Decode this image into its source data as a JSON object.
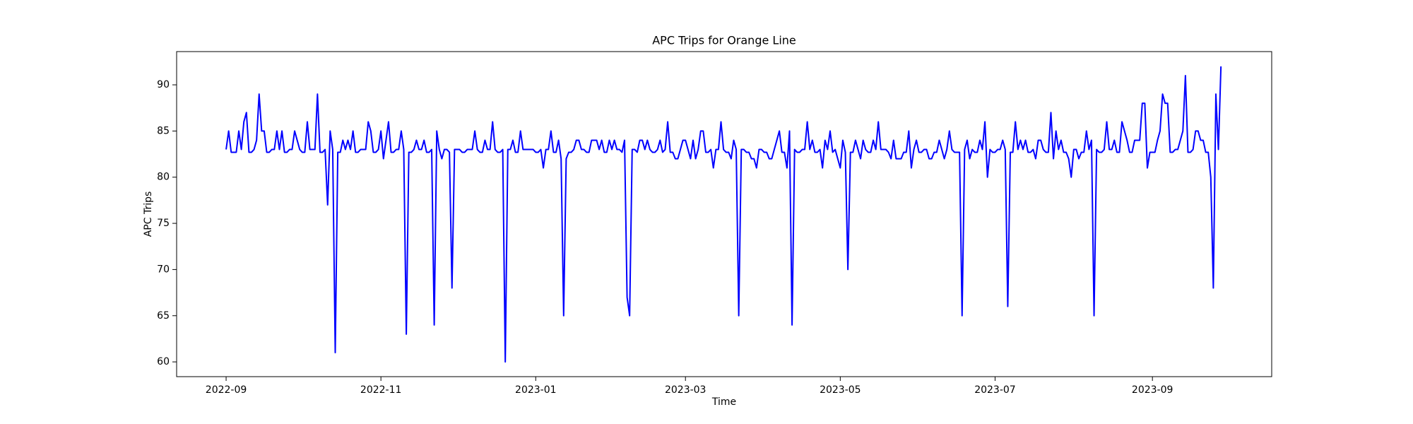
{
  "chart_data": {
    "type": "line",
    "title": "APC Trips for Orange Line",
    "xlabel": "Time",
    "ylabel": "APC Trips",
    "x": [
      0,
      1,
      2,
      3,
      4,
      5,
      6,
      7,
      8,
      9,
      10,
      11,
      12,
      13,
      14,
      15,
      16,
      17,
      18,
      19,
      20,
      21,
      22,
      23,
      24,
      25,
      26,
      27,
      28,
      29,
      30,
      31,
      32,
      33,
      34,
      35,
      36,
      37,
      38,
      39,
      40,
      41,
      42,
      43,
      44,
      45,
      46,
      47,
      48,
      49,
      50,
      51,
      52,
      53,
      54,
      55,
      56,
      57,
      58,
      59,
      60,
      61,
      62,
      63,
      64,
      65,
      66,
      67,
      68,
      69,
      70,
      71,
      72,
      73,
      74,
      75,
      76,
      77,
      78,
      79,
      80,
      81,
      82,
      83,
      84,
      85,
      86,
      87,
      88,
      89,
      90,
      91,
      92,
      93,
      94,
      95,
      96,
      97,
      98,
      99,
      100,
      101,
      102,
      103,
      104,
      105,
      106,
      107,
      108,
      109,
      110,
      111,
      112,
      113,
      114,
      115,
      116,
      117,
      118,
      119,
      120,
      121,
      122,
      123,
      124,
      125,
      126,
      127,
      128,
      129,
      130,
      131,
      132,
      133,
      134,
      135,
      136,
      137,
      138,
      139,
      140,
      141,
      142,
      143,
      144,
      145,
      146,
      147,
      148,
      149,
      150,
      151,
      152,
      153,
      154,
      155,
      156,
      157,
      158,
      159,
      160,
      161,
      162,
      163,
      164,
      165,
      166,
      167,
      168,
      169,
      170,
      171,
      172,
      173,
      174,
      175,
      176,
      177,
      178,
      179,
      180,
      181,
      182,
      183,
      184,
      185,
      186,
      187,
      188,
      189,
      190,
      191,
      192,
      193,
      194,
      195,
      196,
      197,
      198,
      199,
      200,
      201,
      202,
      203,
      204,
      205,
      206,
      207,
      208,
      209,
      210,
      211,
      212,
      213,
      214,
      215,
      216,
      217,
      218,
      219,
      220,
      221,
      222,
      223,
      224,
      225,
      226,
      227,
      228,
      229,
      230,
      231,
      232,
      233,
      234,
      235,
      236,
      237,
      238,
      239,
      240,
      241,
      242,
      243,
      244,
      245,
      246,
      247,
      248,
      249,
      250,
      251,
      252,
      253,
      254,
      255,
      256,
      257,
      258,
      259,
      260,
      261,
      262,
      263,
      264,
      265,
      266,
      267,
      268,
      269,
      270,
      271,
      272,
      273,
      274,
      275,
      276,
      277,
      278,
      279,
      280,
      281,
      282,
      283,
      284,
      285,
      286,
      287,
      288,
      289,
      290,
      291,
      292,
      293,
      294,
      295,
      296,
      297,
      298,
      299,
      300,
      301,
      302,
      303,
      304,
      305,
      306,
      307,
      308,
      309,
      310,
      311,
      312,
      313,
      314,
      315,
      316,
      317,
      318,
      319,
      320,
      321,
      322,
      323,
      324,
      325,
      326,
      327,
      328,
      329,
      330,
      331,
      332,
      333,
      334,
      335,
      336,
      337,
      338,
      339,
      340,
      341,
      342,
      343,
      344,
      345,
      346,
      347,
      348,
      349,
      350,
      351,
      352,
      353,
      354,
      355,
      356,
      357,
      358,
      359,
      360,
      361,
      362,
      363,
      364,
      365,
      366,
      367,
      368,
      369,
      370,
      371,
      372,
      373,
      374,
      375,
      376,
      377,
      378,
      379,
      380,
      381,
      382,
      383,
      384,
      385,
      386,
      387,
      388,
      389,
      390,
      391,
      392
    ],
    "series": [
      {
        "name": "APC Trips",
        "color": "#0000ff",
        "values": [
          83,
          85,
          82.7,
          82.7,
          82.7,
          85,
          83,
          86,
          87,
          82.7,
          82.7,
          83,
          84,
          89,
          85,
          85,
          82.7,
          82.7,
          83,
          83,
          85,
          83,
          85,
          82.7,
          82.7,
          83,
          83,
          85,
          84,
          83,
          82.7,
          82.7,
          86,
          83,
          83,
          83,
          89,
          82.7,
          82.7,
          83,
          77,
          85,
          83,
          61,
          82.7,
          82.7,
          84,
          83,
          84,
          83,
          85,
          82.7,
          82.7,
          83,
          83,
          83,
          86,
          85,
          82.7,
          82.7,
          83,
          85,
          82,
          84,
          86,
          82.7,
          82.7,
          83,
          83,
          85,
          83,
          63,
          82.7,
          82.7,
          83,
          84,
          83,
          83,
          84,
          82.7,
          82.7,
          83,
          64,
          85,
          83,
          82,
          83,
          83,
          82.7,
          68,
          83,
          83,
          83,
          82.7,
          82.7,
          83,
          83,
          83,
          85,
          83,
          82.7,
          82.7,
          84,
          83,
          83,
          86,
          83,
          82.7,
          82.7,
          83,
          60,
          83,
          83,
          84,
          82.7,
          82.7,
          85,
          83,
          83,
          83,
          83,
          83,
          82.7,
          82.7,
          83,
          81,
          83,
          83,
          85,
          82.7,
          82.7,
          84,
          82,
          65,
          82,
          82.7,
          82.7,
          83,
          84,
          84,
          83,
          83,
          82.7,
          82.7,
          84,
          84,
          84,
          83,
          84,
          82.7,
          82.7,
          84,
          83,
          84,
          83,
          83,
          82.7,
          84,
          67,
          65,
          83,
          83,
          82.7,
          84,
          84,
          83,
          84,
          83,
          82.7,
          82.7,
          83,
          84,
          82.7,
          83,
          86,
          82.7,
          82.7,
          82,
          82,
          83,
          84,
          84,
          83,
          82,
          84,
          82,
          83,
          85,
          85,
          82.7,
          82.7,
          83,
          81,
          83,
          83,
          86,
          83,
          82.7,
          82.7,
          82,
          84,
          83,
          65,
          83,
          83,
          82.7,
          82.7,
          82,
          82,
          81,
          83,
          83,
          82.7,
          82.7,
          82,
          82,
          83,
          84,
          85,
          82.7,
          82.7,
          81,
          85,
          64,
          83,
          82.7,
          82.7,
          83,
          83,
          86,
          83,
          84,
          82.7,
          82.7,
          83,
          81,
          84,
          83,
          85,
          82.7,
          83,
          82,
          81,
          84,
          82.7,
          70,
          82.7,
          82.7,
          84,
          83,
          82,
          84,
          83,
          82.7,
          82.7,
          84,
          83,
          86,
          83,
          83,
          83,
          82.7,
          82,
          84,
          82,
          82,
          82,
          82.7,
          82.7,
          85,
          81,
          83,
          84,
          82.7,
          82.7,
          83,
          83,
          82,
          82,
          82.7,
          82.7,
          84,
          83,
          82,
          83,
          85,
          83,
          82.7,
          82.7,
          82.7,
          65,
          83,
          84,
          82,
          83,
          82.7,
          82.7,
          84,
          83,
          86,
          80,
          83,
          82.7,
          82.7,
          83,
          83,
          84,
          83,
          66,
          82.7,
          82.7,
          86,
          83,
          84,
          83,
          84,
          82.7,
          82.7,
          83,
          82,
          84,
          84,
          83,
          82.7,
          82.7,
          87,
          82,
          85,
          83,
          84,
          82.7,
          82.7,
          82,
          80,
          83,
          83,
          82,
          82.7,
          82.7,
          85,
          83,
          84,
          65,
          83,
          82.7,
          82.7,
          83,
          86,
          83,
          83,
          84,
          82.7,
          82.7,
          86,
          85,
          84,
          82.7,
          82.7,
          84,
          84,
          84,
          88,
          88,
          81,
          82.7,
          82.7,
          82.7,
          84,
          85,
          89,
          88,
          88,
          82.7,
          82.7,
          83,
          83,
          84,
          85,
          91,
          82.7,
          82.7,
          83,
          85,
          85,
          84,
          84,
          82.7,
          82.7,
          80,
          68,
          89,
          83,
          92
        ]
      }
    ],
    "xlim": [
      -19.5,
      412
    ],
    "xticks": [
      {
        "value": 0,
        "label": "2022-09"
      },
      {
        "value": 61,
        "label": "2022-11"
      },
      {
        "value": 122,
        "label": "2023-01"
      },
      {
        "value": 181,
        "label": "2023-03"
      },
      {
        "value": 242,
        "label": "2023-05"
      },
      {
        "value": 303,
        "label": "2023-07"
      },
      {
        "value": 365,
        "label": "2023-09"
      }
    ],
    "ylim": [
      58.4,
      93.6
    ],
    "yticks": [
      60,
      65,
      70,
      75,
      80,
      85,
      90
    ],
    "grid": false
  }
}
